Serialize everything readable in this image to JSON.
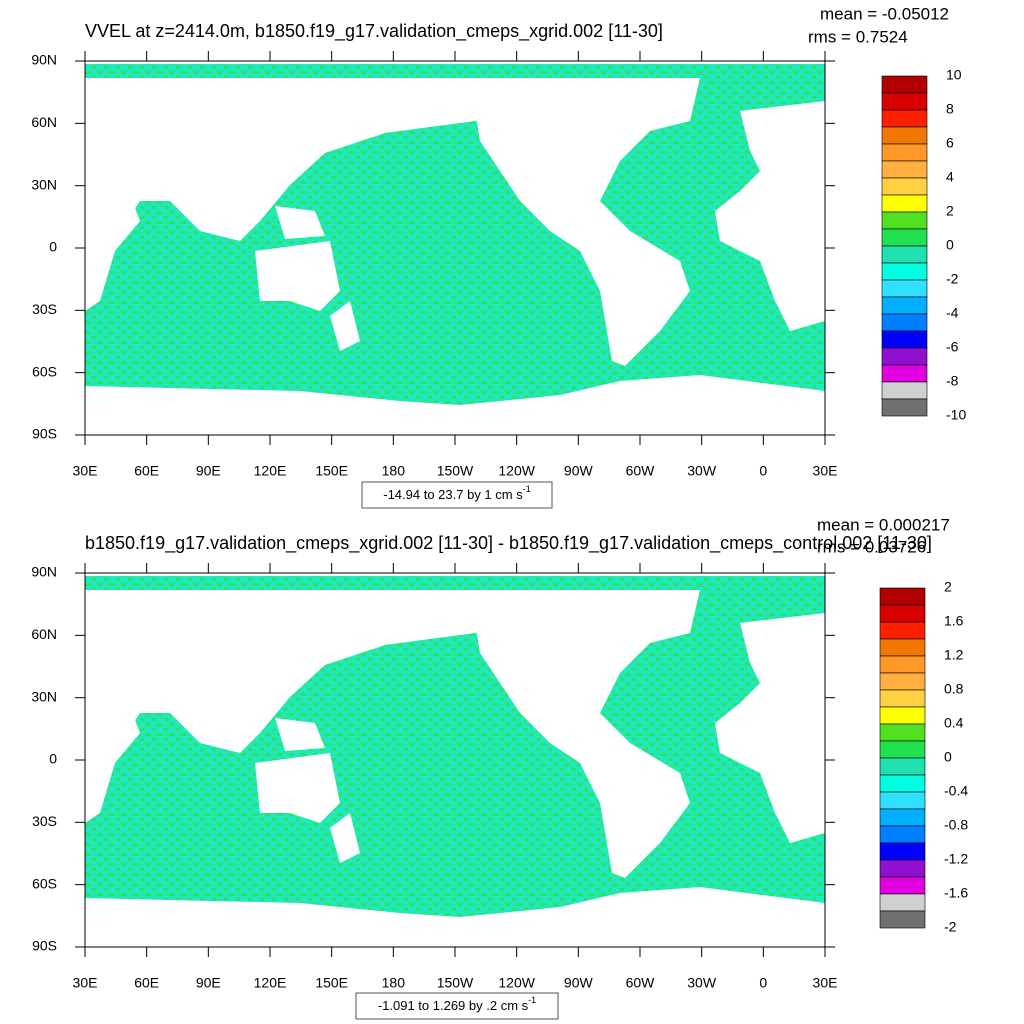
{
  "panels": [
    {
      "title": "VVEL at z=2414.0m, b1850.f19_g17.validation_cmeps_xgrid.002 [11-30]",
      "mean": "mean = -0.05012",
      "rms": "rms = 0.7524",
      "x_labels": [
        "30E",
        "60E",
        "90E",
        "120E",
        "150E",
        "180",
        "150W",
        "120W",
        "90W",
        "60W",
        "30W",
        "0",
        "30E"
      ],
      "y_labels": [
        "90N",
        "60N",
        "30N",
        "0",
        "30S",
        "60S",
        "90S"
      ],
      "colorbar": {
        "labels": [
          "10",
          "8",
          "6",
          "4",
          "2",
          "0",
          "-2",
          "-4",
          "-6",
          "-8",
          "-10"
        ],
        "colors": [
          "#b00000",
          "#d80000",
          "#ff2000",
          "#f07800",
          "#ff9828",
          "#ffb040",
          "#ffd040",
          "#ffff00",
          "#50e020",
          "#20e050",
          "#20e0b0",
          "#00ffe0",
          "#30e0ff",
          "#00b0ff",
          "#0080ff",
          "#0000ff",
          "#9010d0",
          "#e000e0",
          "#d0d0d0",
          "#707070"
        ]
      },
      "range_text": "-14.94 to 23.7 by 1 cm s",
      "range_sup": "-1"
    },
    {
      "title": "b1850.f19_g17.validation_cmeps_xgrid.002 [11-30] - b1850.f19_g17.validation_cmeps_control.002 [11-30]",
      "mean": "mean = 0.000217",
      "rms": "rms = 0.03726",
      "x_labels": [
        "30E",
        "60E",
        "90E",
        "120E",
        "150E",
        "180",
        "150W",
        "120W",
        "90W",
        "60W",
        "30W",
        "0",
        "30E"
      ],
      "y_labels": [
        "90N",
        "60N",
        "30N",
        "0",
        "30S",
        "60S",
        "90S"
      ],
      "colorbar": {
        "labels": [
          "2",
          "1.6",
          "1.2",
          "0.8",
          "0.4",
          "0",
          "-0.4",
          "-0.8",
          "-1.2",
          "-1.6",
          "-2"
        ],
        "colors": [
          "#b00000",
          "#d80000",
          "#ff2000",
          "#f07800",
          "#ff9828",
          "#ffb040",
          "#ffd040",
          "#ffff00",
          "#50e020",
          "#20e050",
          "#20e0b0",
          "#00ffe0",
          "#30e0ff",
          "#00b0ff",
          "#0080ff",
          "#0000ff",
          "#9010d0",
          "#e000e0",
          "#d0d0d0",
          "#707070"
        ]
      },
      "range_text": "-1.091 to 1.269 by .2 cm s",
      "range_sup": "-1"
    }
  ]
}
